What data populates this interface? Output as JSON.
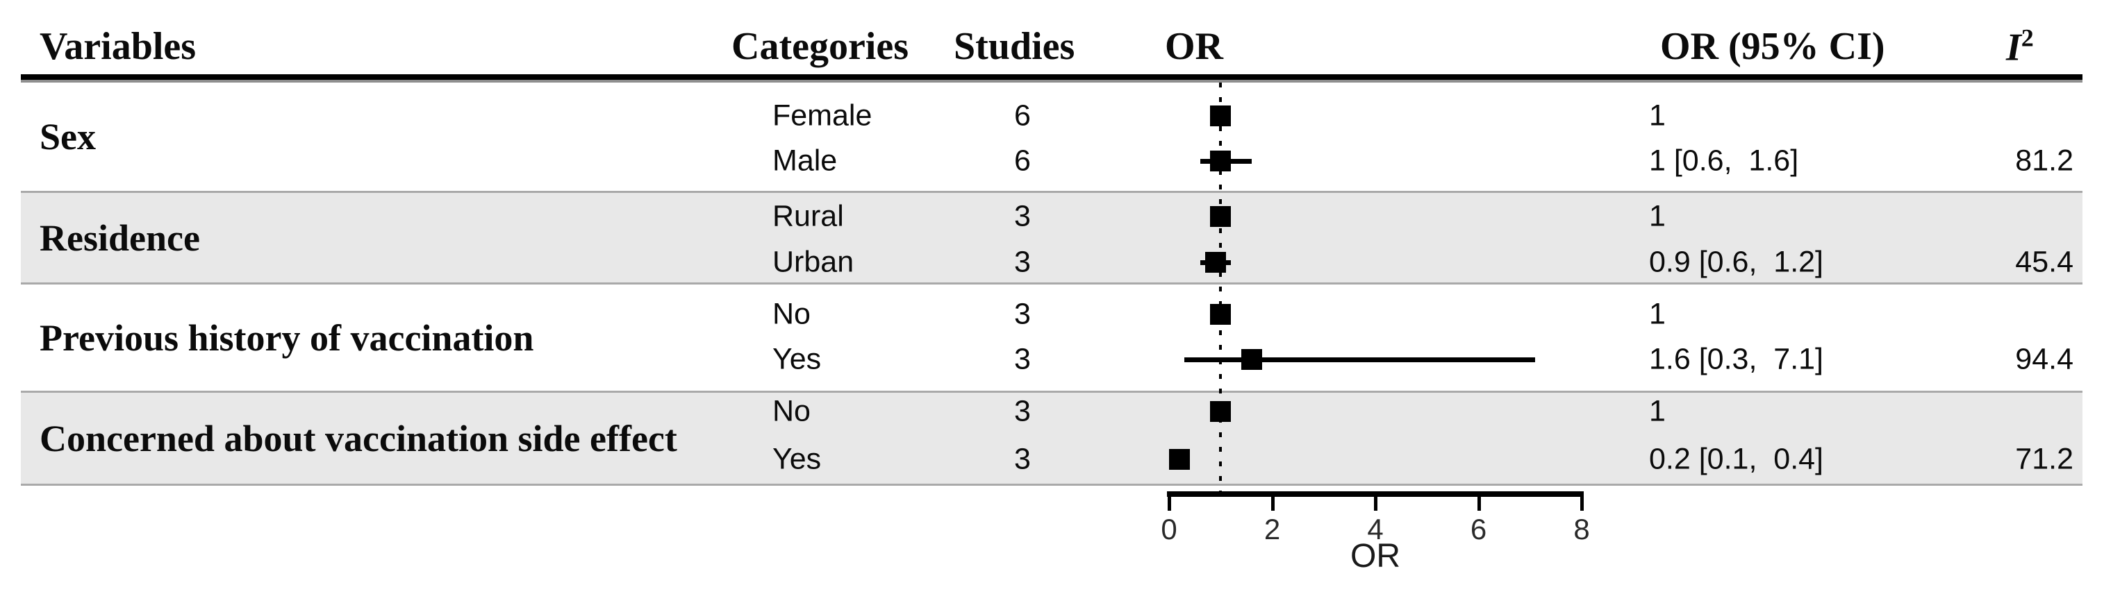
{
  "table": {
    "headers": {
      "variables": "Variables",
      "categories": "Categories",
      "studies": "Studies",
      "or_plot": "OR",
      "or_ci": "OR (95% CI)",
      "i2_base": "I",
      "i2_sup": "2"
    },
    "groups": [
      {
        "variable": "Sex",
        "shaded": false,
        "rows": [
          {
            "category": "Female",
            "studies": "6",
            "or_ci": "1",
            "i2": ""
          },
          {
            "category": "Male",
            "studies": "6",
            "or_ci": "1 [0.6,  1.6]",
            "i2": "81.2"
          }
        ]
      },
      {
        "variable": "Residence",
        "shaded": true,
        "rows": [
          {
            "category": "Rural",
            "studies": "3",
            "or_ci": "1",
            "i2": ""
          },
          {
            "category": "Urban",
            "studies": "3",
            "or_ci": "0.9 [0.6,  1.2]",
            "i2": "45.4"
          }
        ]
      },
      {
        "variable": "Previous history of vaccination",
        "shaded": false,
        "rows": [
          {
            "category": "No",
            "studies": "3",
            "or_ci": "1",
            "i2": ""
          },
          {
            "category": "Yes",
            "studies": "3",
            "or_ci": "1.6 [0.3,  7.1]",
            "i2": "94.4"
          }
        ]
      },
      {
        "variable": "Concerned about vaccination side effect",
        "shaded": true,
        "rows": [
          {
            "category": "No",
            "studies": "3",
            "or_ci": "1",
            "i2": ""
          },
          {
            "category": "Yes",
            "studies": "3",
            "or_ci": "0.2 [0.1,  0.4]",
            "i2": "71.2"
          }
        ]
      }
    ]
  },
  "chart_data": {
    "type": "forest",
    "title": "",
    "x_axis": {
      "label": "OR",
      "ticks": [
        0,
        2,
        4,
        6,
        8
      ],
      "range": [
        0,
        8
      ],
      "reference_line": 1
    },
    "rows": [
      {
        "group": "Sex",
        "category": "Female",
        "studies": 6,
        "or": 1,
        "ci": null,
        "i2": null
      },
      {
        "group": "Sex",
        "category": "Male",
        "studies": 6,
        "or": 1,
        "ci": [
          0.6,
          1.6
        ],
        "i2": 81.2
      },
      {
        "group": "Residence",
        "category": "Rural",
        "studies": 3,
        "or": 1,
        "ci": null,
        "i2": null
      },
      {
        "group": "Residence",
        "category": "Urban",
        "studies": 3,
        "or": 0.9,
        "ci": [
          0.6,
          1.2
        ],
        "i2": 45.4
      },
      {
        "group": "Previous history of vaccination",
        "category": "No",
        "studies": 3,
        "or": 1,
        "ci": null,
        "i2": null
      },
      {
        "group": "Previous history of vaccination",
        "category": "Yes",
        "studies": 3,
        "or": 1.6,
        "ci": [
          0.3,
          7.1
        ],
        "i2": 94.4
      },
      {
        "group": "Concerned about vaccination side effect",
        "category": "No",
        "studies": 3,
        "or": 1,
        "ci": null,
        "i2": null
      },
      {
        "group": "Concerned about vaccination side effect",
        "category": "Yes",
        "studies": 3,
        "or": 0.2,
        "ci": [
          0.1,
          0.4
        ],
        "i2": 71.2
      }
    ],
    "colors": {
      "marker": "#000000",
      "shaded_band": "#e8e8e8",
      "band_border": "#a9a9a9"
    }
  }
}
